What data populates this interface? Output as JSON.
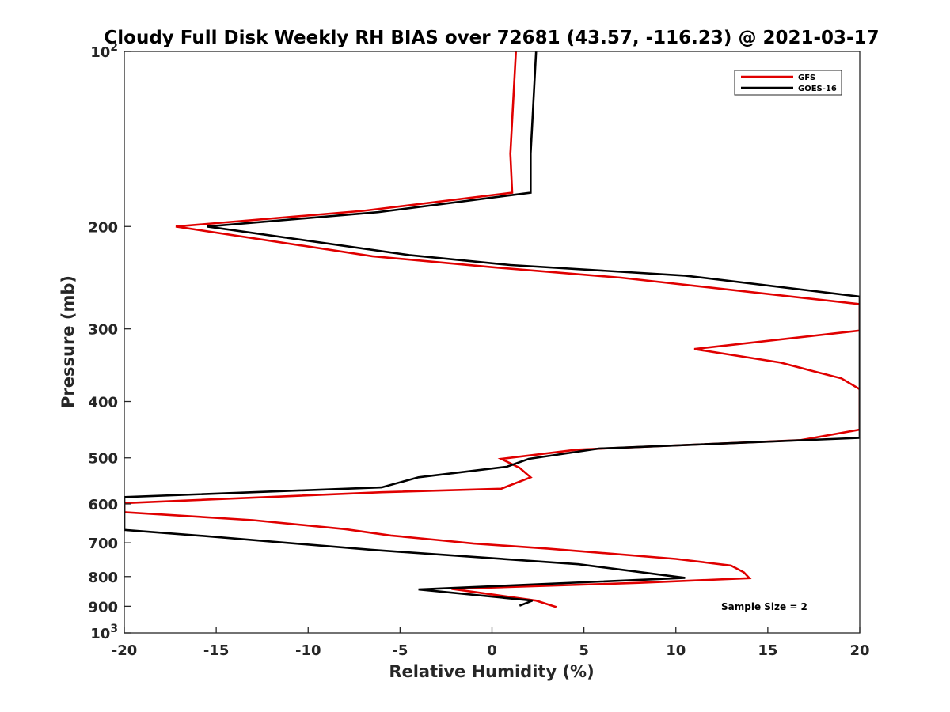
{
  "chart_data": {
    "type": "line",
    "title": "Cloudy Full Disk Weekly RH BIAS over 72681 (43.57, -116.23) @ 2021-03-17",
    "xlabel": "Relative Humidity (%)",
    "ylabel": "Pressure (mb)",
    "xlim": [
      -20,
      20
    ],
    "ylim": [
      100,
      1000
    ],
    "yscale": "log",
    "y_reversed": true,
    "x_ticks": [
      -20,
      -15,
      -10,
      -5,
      0,
      5,
      10,
      15,
      20
    ],
    "x_tick_labels": [
      "-20",
      "-15",
      "-10",
      "-5",
      "0",
      "5",
      "10",
      "15",
      "20"
    ],
    "y_ticks": [
      100,
      200,
      300,
      400,
      500,
      600,
      700,
      800,
      900,
      1000
    ],
    "y_tick_labels": [
      {
        "base": "10",
        "exp": "2"
      },
      {
        "base": "200",
        "exp": ""
      },
      {
        "base": "300",
        "exp": ""
      },
      {
        "base": "400",
        "exp": ""
      },
      {
        "base": "500",
        "exp": ""
      },
      {
        "base": "600",
        "exp": ""
      },
      {
        "base": "700",
        "exp": ""
      },
      {
        "base": "800",
        "exp": ""
      },
      {
        "base": "900",
        "exp": ""
      },
      {
        "base": "10",
        "exp": "3"
      }
    ],
    "grid": false,
    "legend_position": "top-right",
    "series": [
      {
        "name": "GFS",
        "color": "#e00000",
        "points": [
          [
            1.3,
            100
          ],
          [
            1.0,
            150
          ],
          [
            1.1,
            175
          ],
          [
            -7,
            188
          ],
          [
            -17.2,
            200
          ],
          [
            -6.5,
            225
          ],
          [
            0,
            235
          ],
          [
            7,
            245
          ],
          [
            20,
            272
          ],
          [
            20,
            302
          ],
          [
            11,
            325
          ],
          [
            15.7,
            343
          ],
          [
            17.5,
            355
          ],
          [
            19,
            365
          ],
          [
            20,
            381
          ],
          [
            20,
            447
          ],
          [
            16.8,
            466
          ],
          [
            4.6,
            484
          ],
          [
            0.5,
            502
          ],
          [
            1.5,
            520
          ],
          [
            2.1,
            540
          ],
          [
            0.5,
            565
          ],
          [
            -6,
            573
          ],
          [
            -20,
            598
          ],
          [
            -20,
            620
          ],
          [
            -13,
            640
          ],
          [
            -8,
            663
          ],
          [
            -5.5,
            680
          ],
          [
            -3,
            692
          ],
          [
            -1,
            702
          ],
          [
            3,
            716
          ],
          [
            10,
            746
          ],
          [
            13,
            766
          ],
          [
            13.7,
            787
          ],
          [
            14,
            805
          ],
          [
            8,
            820
          ],
          [
            -2.2,
            840
          ],
          [
            2.4,
            880
          ],
          [
            3.5,
            903
          ]
        ]
      },
      {
        "name": "GOES-16",
        "color": "#000000",
        "points": [
          [
            2.4,
            100
          ],
          [
            2.1,
            150
          ],
          [
            2.1,
            175
          ],
          [
            -6.2,
            189
          ],
          [
            -15.5,
            200
          ],
          [
            -4.5,
            224
          ],
          [
            1,
            233
          ],
          [
            10.5,
            243
          ],
          [
            20,
            264
          ],
          [
            20,
            462
          ],
          [
            5.8,
            482
          ],
          [
            2,
            502
          ],
          [
            0.8,
            518
          ],
          [
            -4,
            540
          ],
          [
            -6,
            562
          ],
          [
            -20,
            584
          ],
          [
            -20,
            665
          ],
          [
            -16,
            680
          ],
          [
            -6.5,
            720
          ],
          [
            4.7,
            762
          ],
          [
            10.5,
            804
          ],
          [
            -4,
            842
          ],
          [
            2.2,
            880
          ],
          [
            1.5,
            898
          ]
        ]
      }
    ],
    "annotations": [
      {
        "text": "Sample Size = 2"
      }
    ]
  }
}
